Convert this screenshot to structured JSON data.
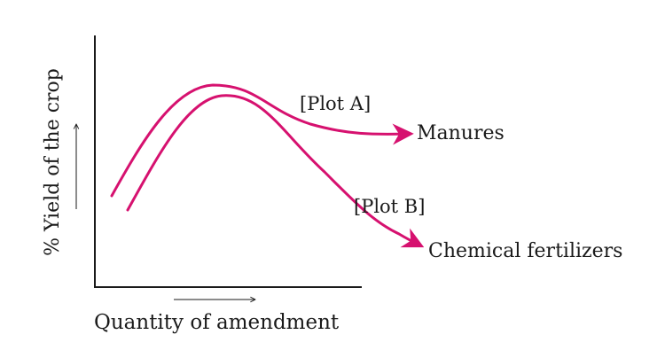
{
  "chart_data": {
    "type": "line",
    "title": "",
    "xlabel": "Quantity of amendment",
    "ylabel": "% Yield of the crop",
    "x_ticks": false,
    "y_ticks": false,
    "grid": false,
    "series": [
      {
        "name": "Manures",
        "plot_label": "[Plot A]",
        "trend": "rises to a peak, then declines slightly and levels off"
      },
      {
        "name": "Chemical fertilizers",
        "plot_label": "[Plot B]",
        "trend": "rises to a peak, then declines steeply"
      }
    ],
    "colors": {
      "curve": "#d6116f",
      "axis": "#1a1a1a",
      "text": "#1a1a1a"
    }
  }
}
